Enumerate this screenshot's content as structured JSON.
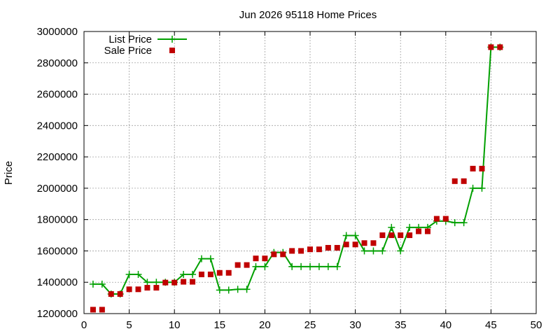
{
  "chart_data": {
    "type": "scatter",
    "title": "Jun 2026 95118 Home Prices",
    "xlabel": "",
    "ylabel": "Price",
    "xlim": [
      0,
      50
    ],
    "ylim": [
      1200000,
      3000000
    ],
    "x_ticks": [
      "0",
      "5",
      "10",
      "15",
      "20",
      "25",
      "30",
      "35",
      "40",
      "45",
      "50"
    ],
    "y_ticks": [
      "1200000",
      "1400000",
      "1600000",
      "1800000",
      "2000000",
      "2200000",
      "2400000",
      "2600000",
      "2800000",
      "3000000"
    ],
    "grid": true,
    "legend_position": "top-left",
    "series": [
      {
        "name": "List Price",
        "style": "line+cross",
        "color": "#00a000",
        "x": [
          1,
          2,
          3,
          4,
          5,
          6,
          7,
          8,
          9,
          10,
          11,
          12,
          13,
          14,
          15,
          16,
          17,
          18,
          19,
          20,
          21,
          22,
          23,
          24,
          25,
          26,
          27,
          28,
          29,
          30,
          31,
          32,
          33,
          34,
          35,
          36,
          37,
          38,
          39,
          40,
          41,
          42,
          43,
          44,
          45,
          46
        ],
        "y": [
          1388000,
          1388000,
          1325000,
          1325000,
          1450000,
          1450000,
          1400000,
          1400000,
          1400000,
          1400000,
          1450000,
          1450000,
          1550000,
          1550000,
          1350000,
          1350000,
          1355000,
          1355000,
          1500000,
          1500000,
          1590000,
          1590000,
          1500000,
          1500000,
          1500000,
          1500000,
          1500000,
          1500000,
          1698000,
          1698000,
          1600000,
          1600000,
          1600000,
          1750000,
          1600000,
          1750000,
          1750000,
          1750000,
          1790000,
          1790000,
          1780000,
          1780000,
          2000000,
          2000000,
          2900000,
          2900000
        ]
      },
      {
        "name": "Sale Price",
        "style": "square",
        "color": "#c00000",
        "x": [
          1,
          2,
          3,
          4,
          5,
          6,
          7,
          8,
          9,
          10,
          11,
          12,
          13,
          14,
          15,
          16,
          17,
          18,
          19,
          20,
          21,
          22,
          23,
          24,
          25,
          26,
          27,
          28,
          29,
          30,
          31,
          32,
          33,
          34,
          35,
          36,
          37,
          38,
          39,
          40,
          41,
          42,
          43,
          44,
          45,
          46
        ],
        "y": [
          1225000,
          1225000,
          1325000,
          1325000,
          1355000,
          1355000,
          1365000,
          1365000,
          1398000,
          1398000,
          1403000,
          1403000,
          1450000,
          1450000,
          1460000,
          1460000,
          1510000,
          1510000,
          1552000,
          1552000,
          1578000,
          1578000,
          1600000,
          1600000,
          1610000,
          1610000,
          1620000,
          1620000,
          1641000,
          1641000,
          1650000,
          1650000,
          1700000,
          1700000,
          1700000,
          1700000,
          1725000,
          1725000,
          1805000,
          1805000,
          2045000,
          2045000,
          2125000,
          2125000,
          2900000,
          2900000
        ]
      }
    ]
  }
}
